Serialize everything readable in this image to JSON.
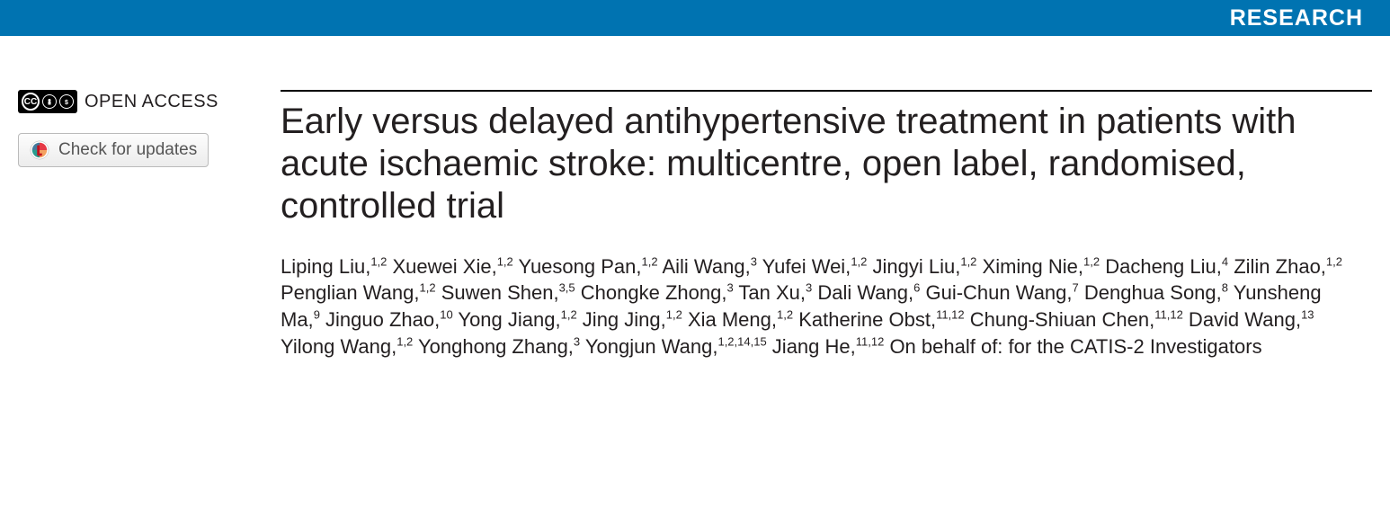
{
  "banner": {
    "label": "RESEARCH",
    "background_color": "#0073b1",
    "text_color": "#ffffff"
  },
  "sidebar": {
    "open_access_label": "OPEN ACCESS",
    "check_updates_label": "Check for updates"
  },
  "article": {
    "title": "Early versus delayed antihypertensive treatment in patients with acute ischaemic stroke: multicentre, open label, randomised, controlled trial",
    "title_color": "#231f20",
    "authors": [
      {
        "name": "Liping Liu",
        "affil": "1,2"
      },
      {
        "name": "Xuewei Xie",
        "affil": "1,2"
      },
      {
        "name": "Yuesong Pan",
        "affil": "1,2"
      },
      {
        "name": "Aili Wang",
        "affil": "3"
      },
      {
        "name": "Yufei Wei",
        "affil": "1,2"
      },
      {
        "name": "Jingyi Liu",
        "affil": "1,2"
      },
      {
        "name": "Ximing Nie",
        "affil": "1,2"
      },
      {
        "name": "Dacheng Liu",
        "affil": "4"
      },
      {
        "name": "Zilin Zhao",
        "affil": "1,2"
      },
      {
        "name": "Penglian Wang",
        "affil": "1,2"
      },
      {
        "name": "Suwen Shen",
        "affil": "3,5"
      },
      {
        "name": "Chongke Zhong",
        "affil": "3"
      },
      {
        "name": "Tan Xu",
        "affil": "3"
      },
      {
        "name": "Dali Wang",
        "affil": "6"
      },
      {
        "name": "Gui-Chun Wang",
        "affil": "7"
      },
      {
        "name": "Denghua Song",
        "affil": "8"
      },
      {
        "name": "Yunsheng Ma",
        "affil": "9"
      },
      {
        "name": "Jinguo Zhao",
        "affil": "10"
      },
      {
        "name": "Yong Jiang",
        "affil": "1,2"
      },
      {
        "name": "Jing Jing",
        "affil": "1,2"
      },
      {
        "name": "Xia Meng",
        "affil": "1,2"
      },
      {
        "name": "Katherine Obst",
        "affil": "11,12"
      },
      {
        "name": "Chung-Shiuan Chen",
        "affil": "11,12"
      },
      {
        "name": "David Wang",
        "affil": "13"
      },
      {
        "name": "Yilong Wang",
        "affil": "1,2"
      },
      {
        "name": "Yonghong Zhang",
        "affil": "3"
      },
      {
        "name": "Yongjun Wang",
        "affil": "1,2,14,15"
      },
      {
        "name": "Jiang He",
        "affil": "11,12"
      }
    ],
    "author_suffix": "On behalf of: for the CATIS-2 Investigators"
  }
}
